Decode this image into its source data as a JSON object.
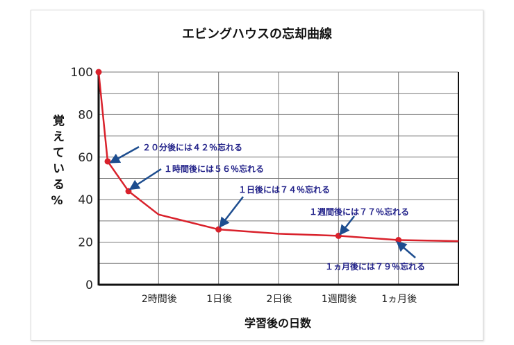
{
  "chart_data": {
    "type": "line",
    "title": "エビングハウスの忘却曲線",
    "xlabel": "学習後の日数",
    "ylabel": "覚えている%",
    "ylim": [
      0,
      100
    ],
    "yticks": [
      "0",
      "20",
      "40",
      "60",
      "80",
      "100"
    ],
    "xticks": [
      "2時間後",
      "1日後",
      "2日後",
      "1週間後",
      "1ヵ月後"
    ],
    "grid": true,
    "line_color": "#d9212b",
    "annotation_color": "#23238a",
    "series": [
      {
        "points": [
          {
            "x": "0",
            "y": 100,
            "marker": true
          },
          {
            "x": "20分後",
            "y": 58,
            "marker": true
          },
          {
            "x": "1時間後",
            "y": 44,
            "marker": true
          },
          {
            "x": "2時間後",
            "y": 33,
            "marker": false
          },
          {
            "x": "1日後",
            "y": 26,
            "marker": true
          },
          {
            "x": "2日後",
            "y": 24,
            "marker": false
          },
          {
            "x": "1週間後",
            "y": 23,
            "marker": true
          },
          {
            "x": "1ヵ月後",
            "y": 21,
            "marker": true
          },
          {
            "x": "end",
            "y": 20.5,
            "marker": false
          }
        ]
      }
    ],
    "annotations": [
      "２０分後には４２％忘れる",
      "１時間後には５６％忘れる",
      "１日後には７４％忘れる",
      "１週間後には７７％忘れる",
      "１ヵ月後には７９％忘れる"
    ]
  }
}
